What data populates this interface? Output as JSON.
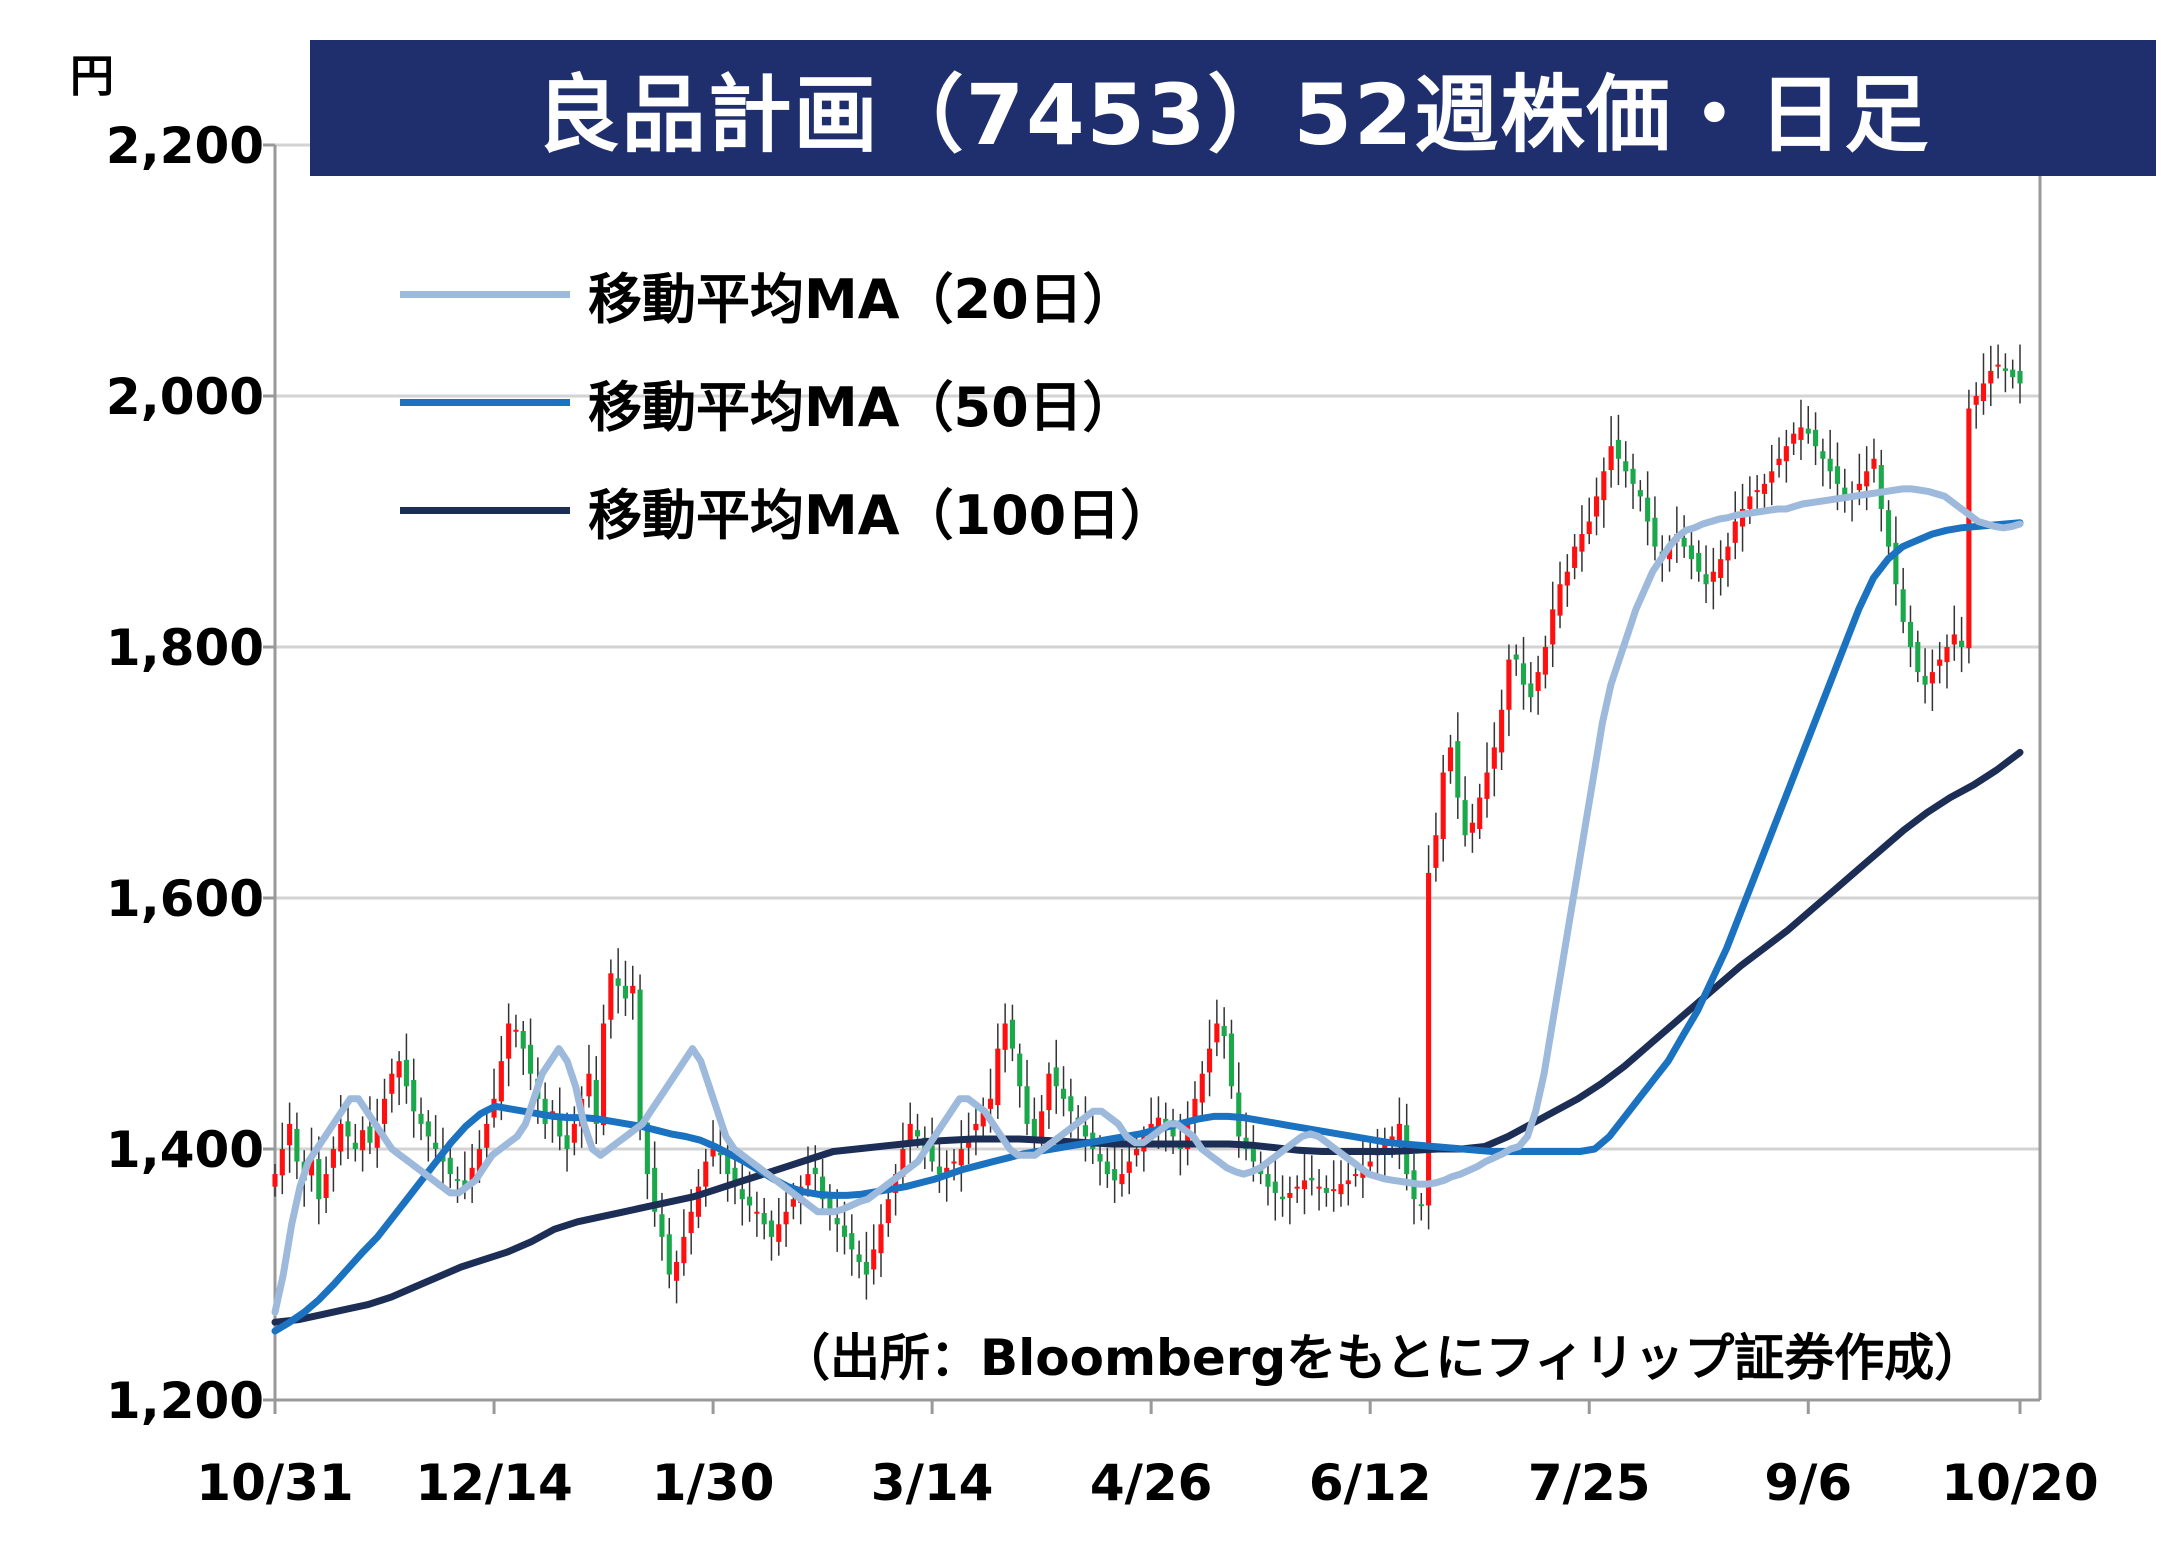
{
  "title": "良品計画（7453）52週株価・日足",
  "unit": "円",
  "source": "（出所：Bloombergをもとにフィリップ証券作成）",
  "colors": {
    "up": "#ff1010",
    "down": "#1aa84a",
    "wick": "#333333",
    "ma20": "#9db9dc",
    "ma50": "#1a72c0",
    "ma100": "#1c2e55",
    "grid": "#d3d3d3",
    "title_bg": "#1f2f6e"
  },
  "legend": [
    {
      "label": "移動平均MA（20日）",
      "color": "#9db9dc"
    },
    {
      "label": "移動平均MA（50日）",
      "color": "#1a72c0"
    },
    {
      "label": "移動平均MA（100日）",
      "color": "#1c2e55"
    }
  ],
  "chart_data": {
    "type": "candlestick",
    "title": "良品計画（7453）52週株価・日足",
    "ylabel": "円",
    "ylim": [
      1200,
      2200
    ],
    "yticks": [
      1200,
      1400,
      1600,
      1800,
      2000,
      2200
    ],
    "ytick_labels": [
      "1,200",
      "1,400",
      "1,600",
      "1,800",
      "2,000",
      "2,200"
    ],
    "xtick_labels": [
      "10/31",
      "12/14",
      "1/30",
      "3/14",
      "4/26",
      "6/12",
      "7/25",
      "9/6",
      "10/20"
    ],
    "xtick_index": [
      0,
      30,
      60,
      90,
      120,
      150,
      180,
      210,
      240
    ],
    "grid": true,
    "legend_position": "top-left",
    "candles_note": "approximate daily closes read from chart; open/high/low derived",
    "close": [
      1380,
      1400,
      1420,
      1390,
      1375,
      1395,
      1360,
      1380,
      1400,
      1420,
      1410,
      1400,
      1415,
      1405,
      1420,
      1440,
      1460,
      1470,
      1450,
      1430,
      1420,
      1410,
      1400,
      1390,
      1380,
      1375,
      1370,
      1385,
      1400,
      1420,
      1440,
      1470,
      1500,
      1495,
      1480,
      1460,
      1440,
      1420,
      1430,
      1410,
      1400,
      1420,
      1440,
      1460,
      1420,
      1500,
      1540,
      1530,
      1520,
      1530,
      1420,
      1380,
      1350,
      1330,
      1300,
      1310,
      1330,
      1350,
      1370,
      1390,
      1400,
      1395,
      1380,
      1370,
      1360,
      1355,
      1350,
      1340,
      1330,
      1340,
      1350,
      1360,
      1370,
      1380,
      1380,
      1360,
      1350,
      1340,
      1330,
      1320,
      1310,
      1300,
      1320,
      1340,
      1360,
      1380,
      1400,
      1420,
      1410,
      1400,
      1390,
      1380,
      1385,
      1390,
      1400,
      1410,
      1420,
      1430,
      1440,
      1480,
      1500,
      1480,
      1450,
      1420,
      1410,
      1430,
      1460,
      1450,
      1440,
      1430,
      1420,
      1410,
      1400,
      1390,
      1380,
      1375,
      1380,
      1390,
      1400,
      1410,
      1420,
      1425,
      1420,
      1410,
      1400,
      1420,
      1440,
      1460,
      1480,
      1500,
      1490,
      1450,
      1410,
      1400,
      1390,
      1380,
      1370,
      1365,
      1360,
      1365,
      1370,
      1375,
      1375,
      1370,
      1365,
      1368,
      1372,
      1375,
      1380,
      1385,
      1390,
      1400,
      1405,
      1410,
      1420,
      1380,
      1360,
      1355,
      1620,
      1650,
      1700,
      1720,
      1680,
      1650,
      1660,
      1680,
      1700,
      1720,
      1750,
      1790,
      1790,
      1770,
      1760,
      1780,
      1800,
      1830,
      1850,
      1860,
      1880,
      1890,
      1900,
      1920,
      1940,
      1960,
      1950,
      1940,
      1930,
      1920,
      1900,
      1880,
      1870,
      1880,
      1890,
      1880,
      1870,
      1860,
      1850,
      1860,
      1870,
      1880,
      1900,
      1910,
      1920,
      1925,
      1930,
      1940,
      1950,
      1960,
      1970,
      1975,
      1970,
      1960,
      1950,
      1940,
      1930,
      1920,
      1920,
      1930,
      1940,
      1950,
      1910,
      1880,
      1850,
      1820,
      1800,
      1780,
      1770,
      1780,
      1790,
      1800,
      1810,
      1800,
      1990,
      2000,
      2010,
      2020,
      2025,
      2020,
      2015,
      2010
    ],
    "ma20": [
      1270,
      1300,
      1340,
      1370,
      1390,
      1400,
      1410,
      1420,
      1430,
      1440,
      1440,
      1430,
      1420,
      1410,
      1400,
      1395,
      1390,
      1385,
      1380,
      1375,
      1370,
      1365,
      1365,
      1370,
      1375,
      1385,
      1395,
      1400,
      1405,
      1410,
      1420,
      1440,
      1460,
      1470,
      1480,
      1470,
      1450,
      1420,
      1400,
      1395,
      1400,
      1405,
      1410,
      1415,
      1420,
      1430,
      1440,
      1450,
      1460,
      1470,
      1480,
      1470,
      1450,
      1430,
      1410,
      1400,
      1395,
      1390,
      1385,
      1380,
      1375,
      1370,
      1365,
      1360,
      1355,
      1350,
      1350,
      1350,
      1352,
      1355,
      1358,
      1360,
      1365,
      1370,
      1375,
      1380,
      1385,
      1390,
      1400,
      1410,
      1420,
      1430,
      1440,
      1440,
      1435,
      1430,
      1420,
      1410,
      1400,
      1395,
      1395,
      1395,
      1400,
      1405,
      1410,
      1415,
      1420,
      1425,
      1430,
      1430,
      1425,
      1420,
      1410,
      1405,
      1405,
      1410,
      1415,
      1420,
      1420,
      1415,
      1410,
      1400,
      1395,
      1390,
      1385,
      1382,
      1380,
      1382,
      1385,
      1390,
      1395,
      1400,
      1405,
      1410,
      1412,
      1410,
      1405,
      1400,
      1395,
      1390,
      1385,
      1380,
      1378,
      1376,
      1375,
      1374,
      1373,
      1372,
      1372,
      1373,
      1375,
      1378,
      1380,
      1383,
      1386,
      1390,
      1393,
      1396,
      1400,
      1402,
      1410,
      1430,
      1460,
      1500,
      1540,
      1580,
      1620,
      1660,
      1700,
      1740,
      1770,
      1790,
      1810,
      1830,
      1845,
      1860,
      1870,
      1880,
      1888,
      1893,
      1895,
      1898,
      1900,
      1902,
      1903,
      1905,
      1906,
      1907,
      1908,
      1909,
      1910,
      1910,
      1912,
      1914,
      1915,
      1916,
      1917,
      1918,
      1919,
      1920,
      1921,
      1922,
      1923,
      1924,
      1925,
      1926,
      1926,
      1925,
      1924,
      1922,
      1920,
      1915,
      1910,
      1905,
      1900,
      1898,
      1896,
      1895,
      1896,
      1898
    ],
    "ma50": [
      1255,
      1262,
      1270,
      1280,
      1292,
      1305,
      1318,
      1330,
      1345,
      1360,
      1375,
      1390,
      1405,
      1418,
      1428,
      1434,
      1432,
      1430,
      1428,
      1426,
      1425,
      1425,
      1424,
      1422,
      1420,
      1418,
      1415,
      1412,
      1410,
      1407,
      1402,
      1396,
      1390,
      1383,
      1376,
      1370,
      1366,
      1364,
      1363,
      1363,
      1364,
      1366,
      1368,
      1370,
      1373,
      1376,
      1380,
      1384,
      1387,
      1390,
      1393,
      1396,
      1398,
      1400,
      1402,
      1404,
      1406,
      1408,
      1410,
      1412,
      1415,
      1418,
      1421,
      1424,
      1426,
      1426,
      1425,
      1423,
      1421,
      1419,
      1417,
      1415,
      1413,
      1411,
      1409,
      1407,
      1405,
      1404,
      1403,
      1402,
      1401,
      1400,
      1399,
      1398,
      1398,
      1398,
      1398,
      1398,
      1398,
      1398,
      1400,
      1410,
      1425,
      1440,
      1455,
      1470,
      1490,
      1510,
      1535,
      1560,
      1590,
      1620,
      1650,
      1680,
      1710,
      1740,
      1770,
      1800,
      1830,
      1855,
      1870,
      1880,
      1885,
      1890,
      1893,
      1895,
      1896,
      1897,
      1898,
      1899
    ],
    "ma100": [
      1262,
      1264,
      1268,
      1272,
      1276,
      1282,
      1290,
      1298,
      1306,
      1312,
      1318,
      1326,
      1336,
      1342,
      1346,
      1350,
      1354,
      1358,
      1362,
      1368,
      1374,
      1380,
      1386,
      1392,
      1398,
      1400,
      1402,
      1404,
      1406,
      1407,
      1408,
      1408,
      1408,
      1407,
      1406,
      1405,
      1404,
      1404,
      1404,
      1404,
      1404,
      1404,
      1403,
      1401,
      1399,
      1398,
      1398,
      1398,
      1398,
      1399,
      1400,
      1400,
      1402,
      1410,
      1420,
      1430,
      1440,
      1452,
      1466,
      1482,
      1498,
      1514,
      1530,
      1546,
      1560,
      1574,
      1590,
      1606,
      1622,
      1638,
      1654,
      1668,
      1680,
      1690,
      1702,
      1716
    ]
  }
}
